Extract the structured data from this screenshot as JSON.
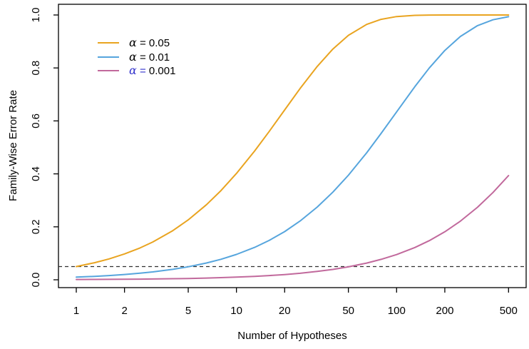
{
  "figure": {
    "background_color": "#ffffff",
    "frame_color": "#000000",
    "text_color": "#000000"
  },
  "chart_data": {
    "type": "line",
    "xlabel": "Number of Hypotheses",
    "ylabel": "Family-Wise Error Rate",
    "x_scale": "log10",
    "x_ticks": [
      "1",
      "2",
      "5",
      "10",
      "20",
      "50",
      "100",
      "200",
      "500"
    ],
    "y_ticks": [
      "0.0",
      "0.2",
      "0.4",
      "0.6",
      "0.8",
      "1.0"
    ],
    "xlim_log10": [
      -0.1113,
      2.8089
    ],
    "ylim": [
      -0.0296,
      1.0404
    ],
    "grid": false,
    "reference_line": {
      "y": 0.05,
      "style": "dashed",
      "color": "#303030"
    },
    "legend": {
      "position": "top-left",
      "entries": [
        {
          "label": "α = 0.05",
          "symbol": "α",
          "separator": " = ",
          "value": "0.05",
          "text_color": "#000000",
          "line_color": "#E9A420"
        },
        {
          "label": "α = 0.01",
          "symbol": "α",
          "separator": " = ",
          "value": "0.01",
          "text_color": "#000000",
          "line_color": "#56A5DD"
        },
        {
          "label": "α = 0.001",
          "symbol": "α",
          "separator": " = ",
          "value": "0.001",
          "text_color": "#3333CC",
          "line_color": "#C1699C"
        }
      ]
    },
    "x": [
      1,
      1.3,
      1.6,
      2,
      2.5,
      3,
      4,
      5,
      6.5,
      8,
      10,
      13,
      16,
      20,
      25,
      32,
      40,
      50,
      65,
      80,
      100,
      130,
      160,
      200,
      250,
      320,
      400,
      500
    ],
    "series": [
      {
        "name": "alpha-0.05",
        "alpha": 0.05,
        "color": "#E9A420",
        "y": [
          0.05,
          0.0645,
          0.0788,
          0.0975,
          0.1203,
          0.1426,
          0.1855,
          0.2262,
          0.2835,
          0.3366,
          0.4013,
          0.4866,
          0.5599,
          0.6415,
          0.7226,
          0.8063,
          0.8715,
          0.9231,
          0.9643,
          0.9835,
          0.9941,
          0.9987,
          0.9997,
          0.99997,
          1.0,
          1.0,
          1.0,
          1.0
        ]
      },
      {
        "name": "alpha-0.01",
        "alpha": 0.01,
        "color": "#56A5DD",
        "y": [
          0.01,
          0.013,
          0.0159,
          0.0199,
          0.0248,
          0.0297,
          0.0394,
          0.049,
          0.0633,
          0.0773,
          0.0956,
          0.1225,
          0.1485,
          0.1821,
          0.2222,
          0.275,
          0.331,
          0.395,
          0.4796,
          0.5525,
          0.634,
          0.7294,
          0.7998,
          0.866,
          0.9189,
          0.9599,
          0.982,
          0.9934
        ]
      },
      {
        "name": "alpha-0.001",
        "alpha": 0.001,
        "color": "#C1699C",
        "y": [
          0.001,
          0.0013,
          0.0016,
          0.002,
          0.0025,
          0.003,
          0.004,
          0.005,
          0.0065,
          0.008,
          0.01,
          0.013,
          0.0159,
          0.0198,
          0.0247,
          0.0315,
          0.0392,
          0.0488,
          0.063,
          0.077,
          0.0952,
          0.122,
          0.1478,
          0.1813,
          0.2213,
          0.274,
          0.3297,
          0.3936
        ]
      }
    ]
  }
}
